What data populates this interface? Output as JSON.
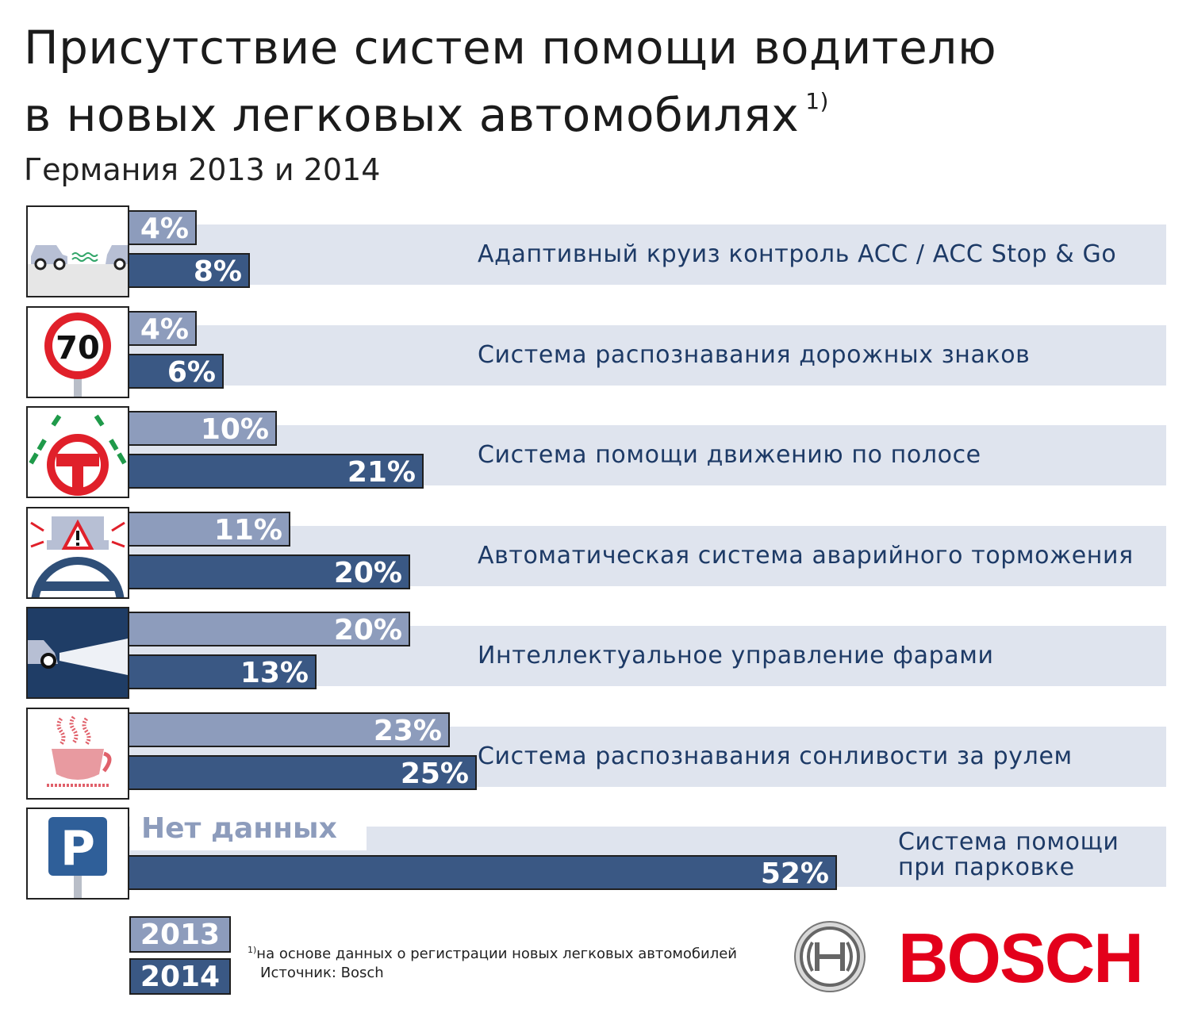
{
  "title_line1": "Присутствие систем помощи водителю",
  "title_line2": "в новых легковых автомобилях",
  "title_footnote_mark": "1)",
  "subtitle": "Германия 2013 и 2014",
  "colors": {
    "bar_2013": "#8d9cbc",
    "bar_2014": "#3a5884",
    "band": "#dfe4ee",
    "label": "#1d3a66",
    "brand": "#e3001b"
  },
  "icons": [
    "acc-icon",
    "speed-limit-70-icon",
    "lane-keeping-icon",
    "emergency-braking-icon",
    "headlight-icon",
    "coffee-cup-icon",
    "parking-sign-icon"
  ],
  "chart_data": {
    "type": "bar",
    "orientation": "horizontal",
    "categories": [
      "Адаптивный круиз контроль ACC / ACC Stop & Go",
      "Система распознавания дорожных знаков",
      "Система помощи движению по полосе",
      "Автоматическая система аварийного торможения",
      "Интеллектуальное управление фарами",
      "Система распознавания сонливости за рулем",
      "Система помощи при парковке"
    ],
    "series": [
      {
        "name": "2013",
        "values": [
          4,
          4,
          10,
          11,
          20,
          23,
          null
        ],
        "labels": [
          "4%",
          "4%",
          "10%",
          "11%",
          "20%",
          "23%",
          "Нет данных"
        ]
      },
      {
        "name": "2014",
        "values": [
          8,
          6,
          21,
          20,
          13,
          25,
          52
        ],
        "labels": [
          "8%",
          "6%",
          "21%",
          "20%",
          "13%",
          "25%",
          "52%"
        ]
      }
    ],
    "unit": "%",
    "legend_position": "bottom-left"
  },
  "footnote_mark": "1)",
  "footnote_text": "на основе данных о регистрации новых легковых автомобилей",
  "source": "Источник: Bosch",
  "brand": "BOSCH"
}
